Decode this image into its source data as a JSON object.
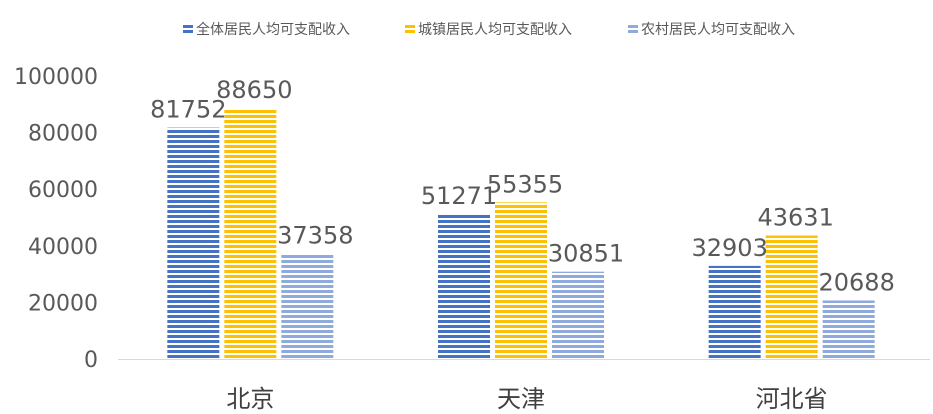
{
  "chart_data": {
    "type": "bar",
    "title": "",
    "xlabel": "",
    "ylabel": "",
    "categories": [
      "北京",
      "天津",
      "河北省"
    ],
    "series": [
      {
        "name": "全体居民人均可支配收入",
        "values": [
          81752,
          51271,
          32903
        ],
        "color": "#4472C4"
      },
      {
        "name": "城镇居民人均可支配收入",
        "values": [
          88650,
          55355,
          43631
        ],
        "color": "#FFC000"
      },
      {
        "name": "农村居民人均可支配收入",
        "values": [
          37358,
          30851,
          20688
        ],
        "color": "#8FAADC"
      }
    ],
    "yticks": [
      "0",
      "20000",
      "40000",
      "60000",
      "80000",
      "100000"
    ],
    "ylim": [
      0,
      100000
    ],
    "grid": false,
    "legend_position": "top",
    "bar_pattern": "horizontal-stripes",
    "data_labels": true
  }
}
